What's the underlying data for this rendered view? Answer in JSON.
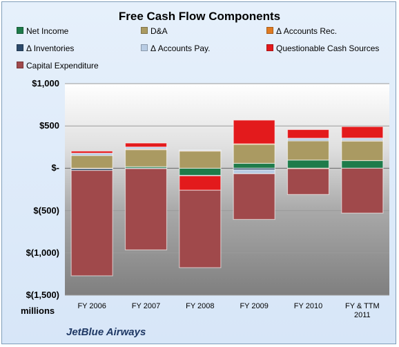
{
  "chart_data": {
    "type": "bar",
    "stacked": true,
    "title": "Free Cash Flow Components",
    "units_label": "millions",
    "footer": "JetBlue Airways",
    "categories": [
      "FY 2006",
      "FY 2007",
      "FY 2008",
      "FY 2009",
      "FY 2010",
      "FY & TTM 2011"
    ],
    "ylim": [
      -1500,
      1000
    ],
    "yticks": [
      {
        "value": 1000,
        "label": "$1,000"
      },
      {
        "value": 500,
        "label": "$500"
      },
      {
        "value": 0,
        "label": "$-"
      },
      {
        "value": -500,
        "label": "$(500)"
      },
      {
        "value": -1000,
        "label": "$(1,000)"
      },
      {
        "value": -1500,
        "label": "$(1,500)"
      }
    ],
    "legend_position": "top",
    "grid": true,
    "series": [
      {
        "name": "Net Income",
        "color": "#1e7b4a",
        "values": [
          -1,
          18,
          -85,
          58,
          97,
          90
        ]
      },
      {
        "name": "D&A",
        "color": "#aa9a62",
        "values": [
          151,
          205,
          205,
          228,
          230,
          233
        ]
      },
      {
        "name": "Δ Accounts Rec.",
        "color": "#e07b22",
        "values": [
          -5,
          3,
          5,
          3,
          -5,
          5
        ]
      },
      {
        "name": "Δ Inventories",
        "color": "#2c4a6b",
        "values": [
          -20,
          -5,
          -5,
          -20,
          3,
          4
        ]
      },
      {
        "name": "Δ Accounts Pay.",
        "color": "#b8cce4",
        "values": [
          27,
          25,
          5,
          -45,
          25,
          25
        ]
      },
      {
        "name": "Questionable Cash Sources",
        "color": "#e31a1c",
        "values": [
          25,
          47,
          -170,
          280,
          102,
          135
        ]
      },
      {
        "name": "Capital Expenditure",
        "color": "#a0494b",
        "values": [
          -1245,
          -960,
          -915,
          -540,
          -305,
          -530
        ]
      }
    ]
  }
}
